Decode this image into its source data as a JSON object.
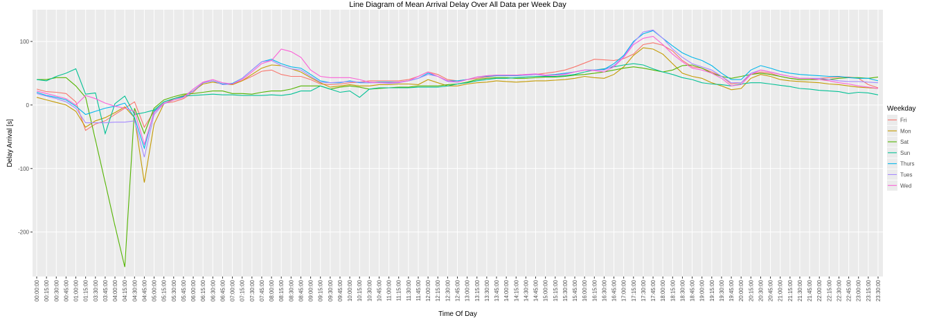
{
  "chart_data": {
    "type": "line",
    "title": "Line Diagram of Mean Arrival Delay Over All Data per Week Day",
    "x_label": "Time Of Day",
    "y_label": "Delay Arrival [s]",
    "legend_title": "Weekday",
    "legend_position": "right",
    "grid": true,
    "ylim": [
      -270,
      150
    ],
    "yticks": [
      -200,
      -100,
      0,
      100
    ],
    "categories": [
      "00:00:00",
      "00:15:00",
      "00:30:00",
      "00:45:00",
      "01:00:00",
      "01:15:00",
      "03:30:00",
      "03:45:00",
      "04:00:00",
      "04:15:00",
      "04:30:00",
      "04:45:00",
      "05:00:00",
      "05:15:00",
      "05:30:00",
      "05:45:00",
      "06:00:00",
      "06:15:00",
      "06:30:00",
      "06:45:00",
      "07:00:00",
      "07:15:00",
      "07:30:00",
      "07:45:00",
      "08:00:00",
      "08:15:00",
      "08:30:00",
      "08:45:00",
      "09:00:00",
      "09:15:00",
      "09:30:00",
      "09:45:00",
      "10:00:00",
      "10:15:00",
      "10:30:00",
      "10:45:00",
      "11:00:00",
      "11:15:00",
      "11:30:00",
      "11:45:00",
      "12:00:00",
      "12:15:00",
      "12:30:00",
      "12:45:00",
      "13:00:00",
      "13:15:00",
      "13:30:00",
      "13:45:00",
      "14:00:00",
      "14:15:00",
      "14:30:00",
      "14:45:00",
      "15:00:00",
      "15:15:00",
      "15:30:00",
      "15:45:00",
      "16:00:00",
      "16:15:00",
      "16:30:00",
      "16:45:00",
      "17:00:00",
      "17:15:00",
      "17:30:00",
      "17:45:00",
      "18:00:00",
      "18:15:00",
      "18:30:00",
      "18:45:00",
      "19:00:00",
      "19:15:00",
      "19:30:00",
      "19:45:00",
      "20:00:00",
      "20:15:00",
      "20:30:00",
      "20:45:00",
      "21:00:00",
      "21:15:00",
      "21:30:00",
      "21:45:00",
      "22:00:00",
      "22:15:00",
      "22:30:00",
      "22:45:00",
      "23:00:00",
      "23:15:00",
      "23:30:00"
    ],
    "series": [
      {
        "name": "Fri",
        "color": "#F8766D",
        "values": [
          25,
          21,
          20,
          18,
          5,
          -40,
          -30,
          -25,
          -15,
          -5,
          5,
          -35,
          -10,
          3,
          5,
          10,
          20,
          35,
          38,
          33,
          32,
          38,
          45,
          53,
          55,
          48,
          45,
          45,
          40,
          33,
          32,
          33,
          35,
          36,
          38,
          38,
          38,
          38,
          40,
          45,
          52,
          48,
          40,
          38,
          40,
          42,
          44,
          46,
          47,
          47,
          48,
          48,
          50,
          52,
          55,
          60,
          66,
          72,
          71,
          70,
          73,
          80,
          95,
          98,
          94,
          85,
          70,
          60,
          58,
          52,
          45,
          33,
          35,
          48,
          52,
          50,
          45,
          42,
          40,
          40,
          42,
          43,
          44,
          44,
          42,
          32,
          27
        ]
      },
      {
        "name": "Mon",
        "color": "#C49A00",
        "values": [
          12,
          8,
          4,
          0,
          -10,
          -35,
          -25,
          -20,
          -12,
          -3,
          -20,
          -122,
          -30,
          2,
          10,
          15,
          22,
          33,
          36,
          33,
          32,
          38,
          48,
          58,
          63,
          62,
          57,
          52,
          43,
          35,
          28,
          30,
          32,
          30,
          30,
          32,
          32,
          33,
          33,
          32,
          40,
          35,
          30,
          30,
          33,
          35,
          36,
          38,
          37,
          36,
          37,
          38,
          38,
          39,
          40,
          42,
          45,
          43,
          42,
          48,
          60,
          78,
          90,
          88,
          80,
          65,
          50,
          45,
          42,
          35,
          30,
          24,
          26,
          42,
          48,
          45,
          40,
          38,
          37,
          36,
          35,
          33,
          32,
          30,
          28,
          27,
          26
        ]
      },
      {
        "name": "Sat",
        "color": "#53B400",
        "values": [
          40,
          40,
          43,
          43,
          30,
          12,
          -55,
          -122,
          -190,
          -255,
          -5,
          -45,
          -5,
          8,
          13,
          17,
          18,
          20,
          22,
          22,
          18,
          18,
          17,
          20,
          22,
          22,
          25,
          30,
          30,
          30,
          25,
          28,
          30,
          28,
          25,
          26,
          27,
          28,
          28,
          30,
          30,
          30,
          32,
          33,
          36,
          40,
          42,
          43,
          43,
          42,
          42,
          43,
          44,
          44,
          45,
          47,
          48,
          50,
          52,
          55,
          58,
          60,
          58,
          55,
          52,
          55,
          62,
          63,
          58,
          50,
          45,
          42,
          45,
          48,
          50,
          48,
          45,
          42,
          40,
          40,
          40,
          40,
          42,
          43,
          43,
          42,
          44
        ]
      },
      {
        "name": "Sun",
        "color": "#00C094",
        "values": [
          40,
          38,
          45,
          50,
          57,
          17,
          19,
          -45,
          2,
          14,
          -15,
          -12,
          -8,
          5,
          10,
          14,
          15,
          16,
          17,
          16,
          16,
          15,
          15,
          15,
          16,
          15,
          17,
          22,
          22,
          30,
          25,
          20,
          22,
          12,
          25,
          27,
          27,
          27,
          27,
          28,
          28,
          28,
          30,
          33,
          35,
          38,
          40,
          42,
          42,
          43,
          44,
          45,
          45,
          45,
          46,
          48,
          52,
          55,
          57,
          60,
          63,
          65,
          63,
          57,
          52,
          48,
          43,
          40,
          35,
          33,
          32,
          30,
          33,
          35,
          35,
          33,
          31,
          29,
          26,
          25,
          23,
          22,
          21,
          18,
          20,
          19,
          16
        ]
      },
      {
        "name": "Thurs",
        "color": "#00B6EB",
        "values": [
          20,
          15,
          12,
          8,
          -2,
          -15,
          -10,
          -5,
          -2,
          3,
          -20,
          -68,
          -10,
          2,
          8,
          13,
          22,
          35,
          38,
          33,
          34,
          42,
          55,
          68,
          72,
          65,
          60,
          58,
          48,
          38,
          35,
          35,
          38,
          35,
          35,
          36,
          36,
          36,
          38,
          42,
          50,
          45,
          38,
          38,
          40,
          44,
          45,
          46,
          46,
          46,
          47,
          48,
          47,
          48,
          50,
          52,
          55,
          55,
          56,
          65,
          78,
          100,
          112,
          117,
          105,
          93,
          82,
          75,
          70,
          62,
          50,
          40,
          40,
          55,
          62,
          58,
          53,
          50,
          48,
          47,
          46,
          45,
          45,
          43,
          42,
          42,
          38
        ]
      },
      {
        "name": "Tues",
        "color": "#A58AFF",
        "values": [
          18,
          14,
          10,
          5,
          -5,
          -28,
          -28,
          -28,
          -27,
          -27,
          -25,
          -82,
          -15,
          2,
          8,
          12,
          22,
          35,
          38,
          32,
          33,
          42,
          55,
          68,
          70,
          62,
          57,
          55,
          45,
          36,
          35,
          36,
          37,
          36,
          35,
          35,
          34,
          35,
          38,
          42,
          48,
          45,
          37,
          36,
          40,
          44,
          46,
          47,
          47,
          47,
          47,
          48,
          46,
          47,
          49,
          52,
          55,
          55,
          55,
          62,
          76,
          98,
          115,
          118,
          105,
          88,
          75,
          65,
          60,
          55,
          45,
          35,
          35,
          50,
          55,
          52,
          48,
          45,
          42,
          42,
          42,
          40,
          38,
          37,
          37,
          36,
          35
        ]
      },
      {
        "name": "Wed",
        "color": "#FB61D7",
        "values": [
          22,
          18,
          14,
          10,
          0,
          15,
          10,
          3,
          -2,
          -5,
          -10,
          -62,
          -12,
          3,
          8,
          12,
          25,
          36,
          40,
          35,
          33,
          40,
          52,
          65,
          70,
          88,
          84,
          75,
          55,
          45,
          43,
          43,
          43,
          40,
          36,
          35,
          35,
          36,
          38,
          45,
          52,
          45,
          38,
          36,
          40,
          44,
          46,
          47,
          47,
          47,
          48,
          49,
          47,
          47,
          48,
          52,
          55,
          54,
          52,
          60,
          75,
          95,
          105,
          108,
          95,
          80,
          68,
          58,
          55,
          50,
          42,
          30,
          32,
          48,
          55,
          52,
          48,
          45,
          42,
          42,
          40,
          38,
          35,
          33,
          30,
          28,
          26
        ]
      }
    ]
  }
}
